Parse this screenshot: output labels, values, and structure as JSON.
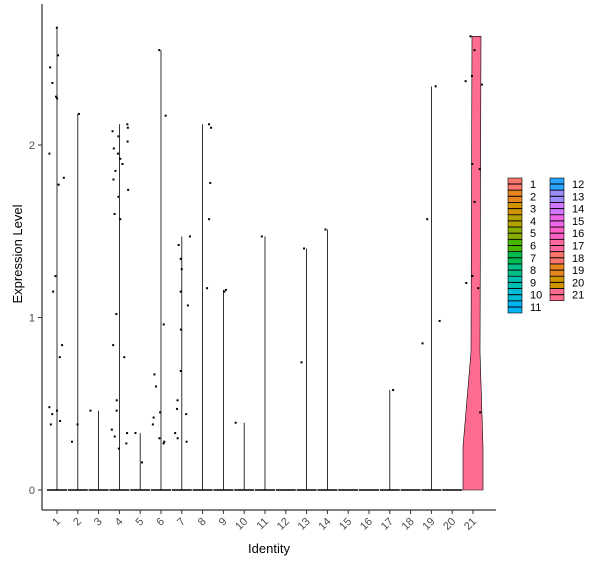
{
  "chart_data": {
    "type": "violin",
    "xlabel": "Identity",
    "ylabel": "Expression Level",
    "ylim": [
      -0.12,
      2.8
    ],
    "y_ticks": [
      0,
      1,
      2
    ],
    "categories": [
      "1",
      "2",
      "3",
      "4",
      "5",
      "6",
      "7",
      "8",
      "9",
      "10",
      "11",
      "12",
      "13",
      "14",
      "15",
      "16",
      "17",
      "18",
      "19",
      "20",
      "21"
    ],
    "colors": [
      "#F8766D",
      "#E7851E",
      "#D09400",
      "#B2A100",
      "#89AC00",
      "#45B500",
      "#00BC51",
      "#00C087",
      "#00C0B2",
      "#00BCD6",
      "#00B3F2",
      "#29A3FF",
      "#9C8DFF",
      "#D277FF",
      "#F166E8",
      "#FF61C7",
      "#FF689E",
      "#F8766D",
      "#E7851E",
      "#D09400",
      "#FF6C91"
    ],
    "violin_max": [
      2.68,
      2.18,
      0.46,
      2.12,
      0.33,
      2.55,
      1.47,
      2.12,
      1.16,
      0.39,
      1.47,
      0,
      1.4,
      1.51,
      0,
      0,
      0.58,
      0,
      2.34,
      0,
      2.63
    ],
    "points": [
      {
        "c": 1,
        "y": [
          2.68,
          2.52,
          2.45,
          2.36,
          2.28,
          2.27,
          1.95,
          1.81,
          1.77,
          1.24,
          1.15,
          0.84,
          0.77,
          0.48,
          0.46,
          0.44,
          0.4,
          0.38
        ]
      },
      {
        "c": 2,
        "y": [
          2.18,
          0.38,
          0.28
        ]
      },
      {
        "c": 3,
        "y": [
          0.46
        ]
      },
      {
        "c": 4,
        "y": [
          2.12,
          2.1,
          2.08,
          2.05,
          2.02,
          1.98,
          1.95,
          1.92,
          1.89,
          1.85,
          1.8,
          1.74,
          1.7,
          1.6,
          1.57,
          1.02,
          0.84,
          0.77,
          0.52,
          0.46,
          0.35,
          0.33,
          0.31,
          0.27,
          0.24
        ]
      },
      {
        "c": 5,
        "y": [
          0.33,
          0.16
        ]
      },
      {
        "c": 6,
        "y": [
          2.55,
          2.17,
          0.96,
          0.67,
          0.6,
          0.45,
          0.42,
          0.38,
          0.3,
          0.28,
          0.27
        ]
      },
      {
        "c": 7,
        "y": [
          1.47,
          1.42,
          1.34,
          1.28,
          1.15,
          1.07,
          0.93,
          0.69,
          0.52,
          0.47,
          0.44,
          0.33,
          0.3,
          0.28
        ]
      },
      {
        "c": 8,
        "y": [
          2.12,
          2.1,
          1.78,
          1.57,
          1.17
        ]
      },
      {
        "c": 9,
        "y": [
          1.16,
          1.15
        ]
      },
      {
        "c": 10,
        "y": [
          0.39
        ]
      },
      {
        "c": 11,
        "y": [
          1.47
        ]
      },
      {
        "c": 13,
        "y": [
          1.4,
          0.74
        ]
      },
      {
        "c": 14,
        "y": [
          1.51
        ]
      },
      {
        "c": 17,
        "y": [
          0.58
        ]
      },
      {
        "c": 19,
        "y": [
          2.34,
          1.57,
          0.98,
          0.85
        ]
      },
      {
        "c": 21,
        "y": [
          2.63,
          2.55,
          2.4,
          2.37,
          2.35,
          1.89,
          1.86,
          1.67,
          1.24,
          1.2,
          1.17,
          0.45
        ]
      }
    ],
    "legend": {
      "placement": "right",
      "columns": [
        [
          "1",
          "2",
          "3",
          "4",
          "5",
          "6",
          "7",
          "8",
          "9",
          "10",
          "11"
        ],
        [
          "12",
          "13",
          "14",
          "15",
          "16",
          "17",
          "18",
          "19",
          "20",
          "21"
        ]
      ]
    }
  }
}
